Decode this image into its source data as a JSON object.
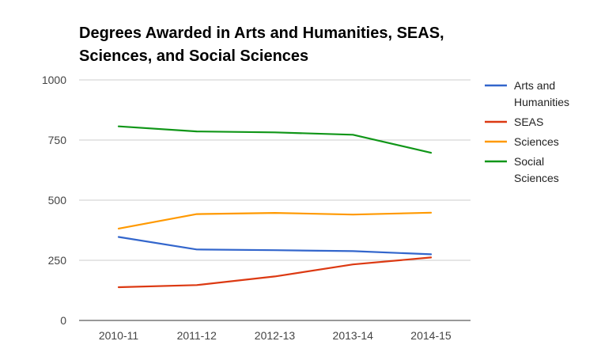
{
  "chart_data": {
    "type": "line",
    "title_lines": [
      "Degrees Awarded in Arts and Humanities, SEAS,",
      "Sciences, and Social Sciences"
    ],
    "categories": [
      "2010-11",
      "2011-12",
      "2012-13",
      "2013-14",
      "2014-15"
    ],
    "ylim": [
      0,
      1000
    ],
    "yticks": [
      "0",
      "250",
      "500",
      "750",
      "1000"
    ],
    "grid": true,
    "legend_position": "right",
    "series": [
      {
        "name": "Arts and Humanities",
        "label_lines": [
          "Arts and",
          "Humanities"
        ],
        "color": "#3366cc",
        "values": [
          347,
          295,
          292,
          288,
          275
        ]
      },
      {
        "name": "SEAS",
        "label_lines": [
          "SEAS"
        ],
        "color": "#dc3912",
        "values": [
          138,
          147,
          183,
          233,
          262
        ]
      },
      {
        "name": "Sciences",
        "label_lines": [
          "Sciences"
        ],
        "color": "#ff9900",
        "values": [
          382,
          442,
          447,
          440,
          448
        ]
      },
      {
        "name": "Social Sciences",
        "label_lines": [
          "Social",
          "Sciences"
        ],
        "color": "#109618",
        "values": [
          807,
          786,
          782,
          772,
          697
        ]
      }
    ]
  }
}
